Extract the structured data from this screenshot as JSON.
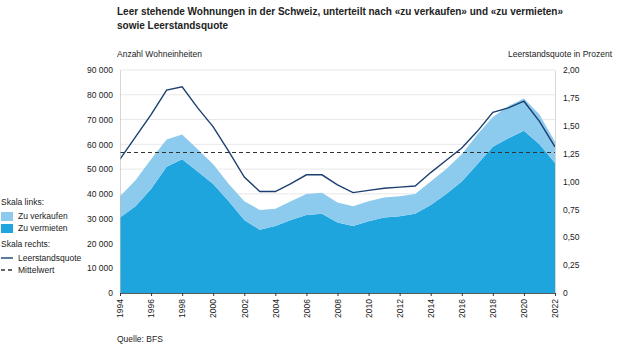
{
  "chart_data": {
    "type": "area",
    "title": [
      "Leer stehende Wohnungen in der Schweiz, unterteilt nach «zu verkaufen» und «zu vermieten»",
      "sowie Leerstandsquote"
    ],
    "ylabel": "Anzahl Wohneinheiten",
    "y2label": "Leerstandsquote in Prozent",
    "source": "Quelle: BFS",
    "legend": "bottom-left",
    "legend_titles": {
      "y": "Skala links:",
      "y2": "Skala rechts:"
    },
    "stacked": true,
    "grid": true,
    "x": [
      1994,
      1995,
      1996,
      1997,
      1998,
      1999,
      2000,
      2001,
      2002,
      2003,
      2004,
      2005,
      2006,
      2007,
      2008,
      2009,
      2010,
      2011,
      2012,
      2013,
      2014,
      2015,
      2016,
      2017,
      2018,
      2019,
      2020,
      2021,
      2022
    ],
    "xlim": [
      1994,
      2022
    ],
    "xticks": [
      1994,
      1996,
      1998,
      2000,
      2002,
      2004,
      2006,
      2008,
      2010,
      2012,
      2014,
      2016,
      2018,
      2020,
      2022
    ],
    "ylim": [
      0,
      90000
    ],
    "yticks": [
      0,
      {
        "value": 10000,
        "label": "10 000"
      },
      {
        "value": 20000,
        "label": "20 000"
      },
      {
        "value": 30000,
        "label": "30 000"
      },
      {
        "value": 40000,
        "label": "40 000"
      },
      {
        "value": 50000,
        "label": "50 000"
      },
      {
        "value": 60000,
        "label": "60 000"
      },
      {
        "value": 70000,
        "label": "70 000"
      },
      {
        "value": 80000,
        "label": "80 000"
      },
      {
        "value": 90000,
        "label": "90 000"
      }
    ],
    "y2lim": [
      0,
      2
    ],
    "y2ticks": [
      0,
      {
        "value": 0.25,
        "label": "0,25"
      },
      {
        "value": 0.5,
        "label": "0,50"
      },
      {
        "value": 0.75,
        "label": "0,75"
      },
      {
        "value": 1,
        "label": "1,00"
      },
      {
        "value": 1.25,
        "label": "1,25"
      },
      {
        "value": 1.5,
        "label": "1,50"
      },
      {
        "value": 1.75,
        "label": "1,75"
      },
      {
        "value": 2,
        "label": "2,00"
      }
    ],
    "series": [
      {
        "name": "Zu verkaufen",
        "type": "area",
        "color": "#8ccbee",
        "values": [
          8500,
          10500,
          12000,
          11000,
          10000,
          9000,
          8000,
          7000,
          7500,
          8000,
          7000,
          7500,
          8500,
          8500,
          8000,
          8000,
          8000,
          8000,
          8000,
          8000,
          9500,
          10000,
          11000,
          12000,
          12000,
          13000,
          13000,
          12000,
          8500
        ]
      },
      {
        "name": "Zu vermieten",
        "type": "area",
        "color": "#1fa5de",
        "values": [
          30500,
          35000,
          42000,
          51000,
          54000,
          49000,
          44000,
          37000,
          29500,
          25500,
          27000,
          29500,
          31500,
          32000,
          28500,
          27000,
          29000,
          30500,
          31000,
          32000,
          35500,
          40000,
          45000,
          52000,
          59000,
          62500,
          65500,
          60000,
          52500
        ]
      },
      {
        "name": "Leerstandsquote",
        "type": "line",
        "axis": "y2",
        "color": "#1b3f6e",
        "line_style": "solid",
        "values": [
          1.2,
          1.4,
          1.6,
          1.82,
          1.85,
          1.66,
          1.49,
          1.27,
          1.04,
          0.91,
          0.91,
          0.98,
          1.06,
          1.06,
          0.97,
          0.9,
          0.92,
          0.94,
          0.95,
          0.96,
          1.08,
          1.19,
          1.3,
          1.45,
          1.62,
          1.66,
          1.72,
          1.54,
          1.31
        ]
      }
    ],
    "reference_lines": [
      {
        "name": "Mittelwert",
        "axis": "y2",
        "value": 1.26,
        "color": "#333333",
        "line_style": "dashed"
      }
    ]
  }
}
